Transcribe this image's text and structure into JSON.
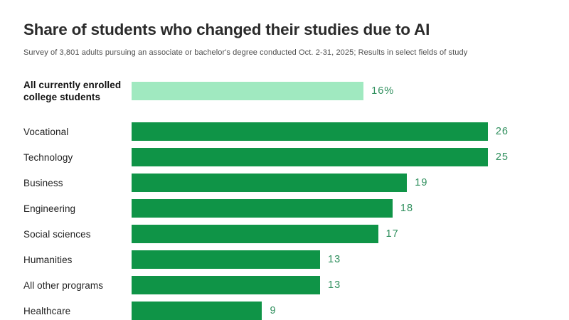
{
  "header": {
    "title": "Share of students who changed their studies due to AI",
    "subtitle": "Survey of 3,801 adults pursuing an associate or bachelor's degree conducted Oct. 2-31, 2025; Results in select fields of study"
  },
  "colors": {
    "bar": "#0f9447",
    "bar_highlight": "#a0e9c0",
    "value_label": "#2f8f5d",
    "category_label": "#222222"
  },
  "chart_data": {
    "type": "bar",
    "orientation": "horizontal",
    "title": "Share of students who changed their studies due to AI",
    "subtitle": "Survey of 3,801 adults pursuing an associate or bachelor's degree conducted Oct. 2-31, 2025; Results in select fields of study",
    "xlabel": "",
    "ylabel": "",
    "xlim": [
      0,
      26
    ],
    "grid": false,
    "legend": "none",
    "unit": "percent of students",
    "highlight_index": 0,
    "categories": [
      "All currently enrolled college students",
      "Vocational",
      "Technology",
      "Business",
      "Engineering",
      "Social sciences",
      "Humanities",
      "All other programs",
      "Healthcare"
    ],
    "values": [
      16,
      26,
      25,
      19,
      18,
      17,
      13,
      13,
      9
    ],
    "value_labels": [
      "16%",
      "26",
      "25",
      "19",
      "18",
      "17",
      "13",
      "13",
      "9"
    ]
  }
}
